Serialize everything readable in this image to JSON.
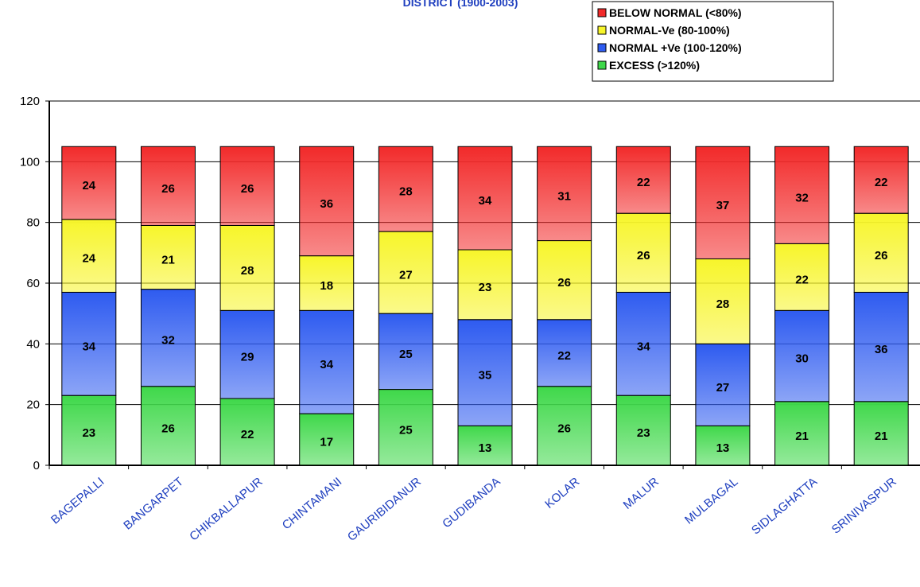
{
  "chart_data": {
    "type": "bar",
    "stacked": true,
    "title": "DISTRICT (1900-2003)",
    "categories": [
      "BAGEPALLI",
      "BANGARPET",
      "CHIKBALLAPUR",
      "CHINTAMANI",
      "GAURIBIDANUR",
      "GUDIBANDA",
      "KOLAR",
      "MALUR",
      "MULBAGAL",
      "SIDLAGHATTA",
      "SRINIVASPUR"
    ],
    "series": [
      {
        "name": "EXCESS (>120%)",
        "color": "#3fd84a",
        "values": [
          23,
          26,
          22,
          17,
          25,
          13,
          26,
          23,
          13,
          21,
          21
        ]
      },
      {
        "name": "NORMAL +Ve (100-120%)",
        "color": "#2e5bf0",
        "values": [
          34,
          32,
          29,
          34,
          25,
          35,
          22,
          34,
          27,
          30,
          36
        ]
      },
      {
        "name": "NORMAL-Ve (80-100%)",
        "color": "#f7f52a",
        "values": [
          24,
          21,
          28,
          18,
          27,
          23,
          26,
          26,
          28,
          22,
          26
        ]
      },
      {
        "name": "BELOW NORMAL (<80%)",
        "color": "#f22a2a",
        "values": [
          24,
          26,
          26,
          36,
          28,
          34,
          31,
          22,
          37,
          32,
          22
        ]
      }
    ],
    "legend_order": [
      "BELOW NORMAL (<80%)",
      "NORMAL-Ve (80-100%)",
      "NORMAL +Ve (100-120%)",
      "EXCESS (>120%)"
    ],
    "ylim": [
      0,
      120
    ],
    "yticks": [
      0,
      20,
      40,
      60,
      80,
      100,
      120
    ],
    "xlabel": "",
    "ylabel": "",
    "grid": true,
    "legend_position": "top-right"
  }
}
